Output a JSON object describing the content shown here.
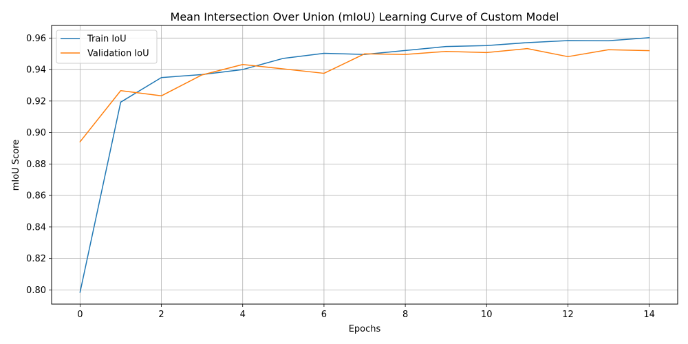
{
  "chart_data": {
    "type": "line",
    "title": "Mean Intersection Over Union (mIoU) Learning Curve of Custom Model",
    "xlabel": "Epochs",
    "ylabel": "mIoU Score",
    "xlim": [
      -0.7,
      14.7
    ],
    "ylim": [
      0.791,
      0.968
    ],
    "xticks": [
      0,
      2,
      4,
      6,
      8,
      10,
      12,
      14
    ],
    "yticks": [
      0.8,
      0.82,
      0.84,
      0.86,
      0.88,
      0.9,
      0.92,
      0.94,
      0.96
    ],
    "xtick_labels": [
      "0",
      "2",
      "4",
      "6",
      "8",
      "10",
      "12",
      "14"
    ],
    "ytick_labels": [
      "0.80",
      "0.82",
      "0.84",
      "0.86",
      "0.88",
      "0.90",
      "0.92",
      "0.94",
      "0.96"
    ],
    "grid": true,
    "legend_position": "top-left",
    "x": [
      0,
      1,
      2,
      3,
      4,
      5,
      6,
      7,
      8,
      9,
      10,
      11,
      12,
      13,
      14
    ],
    "series": [
      {
        "name": "Train IoU",
        "color": "#1f77b4",
        "values": [
          0.7985,
          0.9193,
          0.9349,
          0.9368,
          0.94,
          0.9471,
          0.9503,
          0.9496,
          0.9521,
          0.9546,
          0.9552,
          0.9571,
          0.9584,
          0.9583,
          0.9602
        ]
      },
      {
        "name": "Validation IoU",
        "color": "#ff7f0e",
        "values": [
          0.8941,
          0.9266,
          0.9233,
          0.9366,
          0.9432,
          0.9404,
          0.9376,
          0.95,
          0.9496,
          0.9515,
          0.9508,
          0.9533,
          0.9482,
          0.9526,
          0.952
        ]
      }
    ]
  }
}
